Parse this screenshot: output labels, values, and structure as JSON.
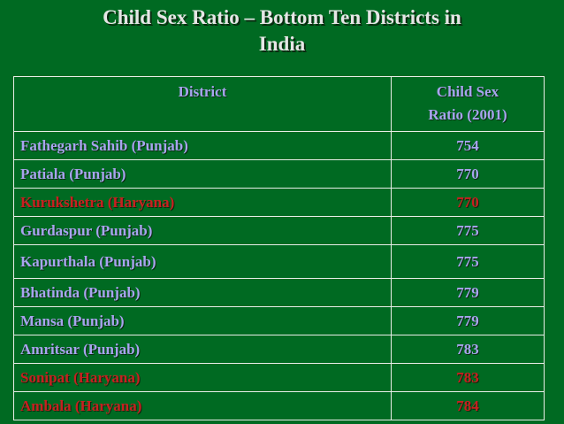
{
  "slide": {
    "title_line1": "Child Sex Ratio – Bottom Ten Districts in",
    "title_line2": "India"
  },
  "table": {
    "headers": {
      "district": "District",
      "ratio_line1": "Child Sex",
      "ratio_line2": "Ratio (2001)"
    },
    "rows": [
      {
        "district": "Fathegarh Sahib (Punjab)",
        "ratio": "754",
        "state": "Punjab"
      },
      {
        "district": "Patiala (Punjab)",
        "ratio": "770",
        "state": "Punjab"
      },
      {
        "district": "Kurukshetra (Haryana)",
        "ratio": "770",
        "state": "Haryana"
      },
      {
        "district": "Gurdaspur (Punjab)",
        "ratio": "775",
        "state": "Punjab"
      },
      {
        "district": "Kapurthala (Punjab)",
        "ratio": "775",
        "state": "Punjab"
      },
      {
        "district": "Bhatinda (Punjab)",
        "ratio": "779",
        "state": "Punjab"
      },
      {
        "district": "Mansa (Punjab)",
        "ratio": "779",
        "state": "Punjab"
      },
      {
        "district": "Amritsar (Punjab)",
        "ratio": "783",
        "state": "Punjab"
      },
      {
        "district": "Sonipat (Haryana)",
        "ratio": "783",
        "state": "Haryana"
      },
      {
        "district": "Ambala (Haryana)",
        "ratio": "784",
        "state": "Haryana"
      }
    ]
  },
  "colors": {
    "background": "#006a22",
    "title_text": "#e6e6e6",
    "punjab_text": "#a8a4ee",
    "haryana_text": "#c82020",
    "grid_lines": "#e9eee9"
  }
}
